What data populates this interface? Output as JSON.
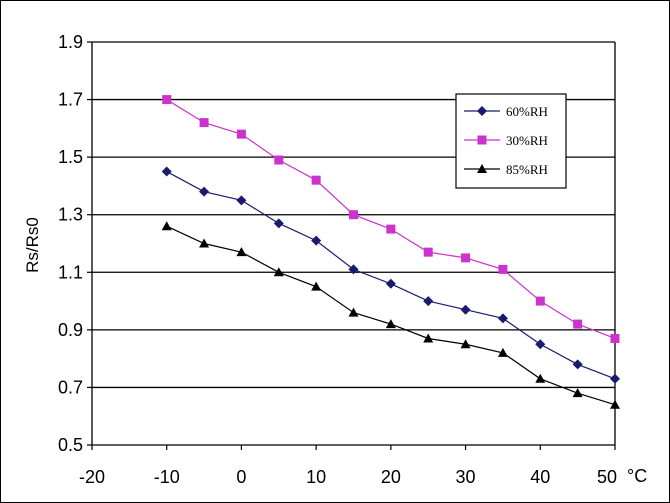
{
  "chart_data": {
    "type": "line",
    "title": "",
    "xlabel": "",
    "ylabel": "Rs/Rs0",
    "x_unit": "°C",
    "xlim": [
      -20,
      50
    ],
    "ylim": [
      0.5,
      1.9
    ],
    "x_ticks": [
      "-20",
      "-10",
      "0",
      "10",
      "20",
      "30",
      "40",
      "50"
    ],
    "y_ticks": [
      "1.9",
      "1.7",
      "1.5",
      "1.3",
      "1.1",
      "0.9",
      "0.7",
      "0.5"
    ],
    "grid": "horizontal",
    "legend_position": "top-right",
    "x": [
      -10,
      -5,
      0,
      5,
      10,
      15,
      20,
      25,
      30,
      35,
      40,
      45,
      50
    ],
    "series": [
      {
        "name": "60%RH",
        "marker": "diamond",
        "color": "#1a1a6e",
        "values": [
          1.45,
          1.38,
          1.35,
          1.27,
          1.21,
          1.11,
          1.06,
          1.0,
          0.97,
          0.94,
          0.85,
          0.78,
          0.73
        ]
      },
      {
        "name": "30%RH",
        "marker": "square",
        "color": "#cc33cc",
        "values": [
          1.7,
          1.62,
          1.58,
          1.49,
          1.42,
          1.3,
          1.25,
          1.17,
          1.15,
          1.11,
          1.0,
          0.92,
          0.87
        ]
      },
      {
        "name": "85%RH",
        "marker": "triangle",
        "color": "#000000",
        "values": [
          1.26,
          1.2,
          1.17,
          1.1,
          1.05,
          0.96,
          0.92,
          0.87,
          0.85,
          0.82,
          0.73,
          0.68,
          0.64
        ]
      }
    ]
  }
}
